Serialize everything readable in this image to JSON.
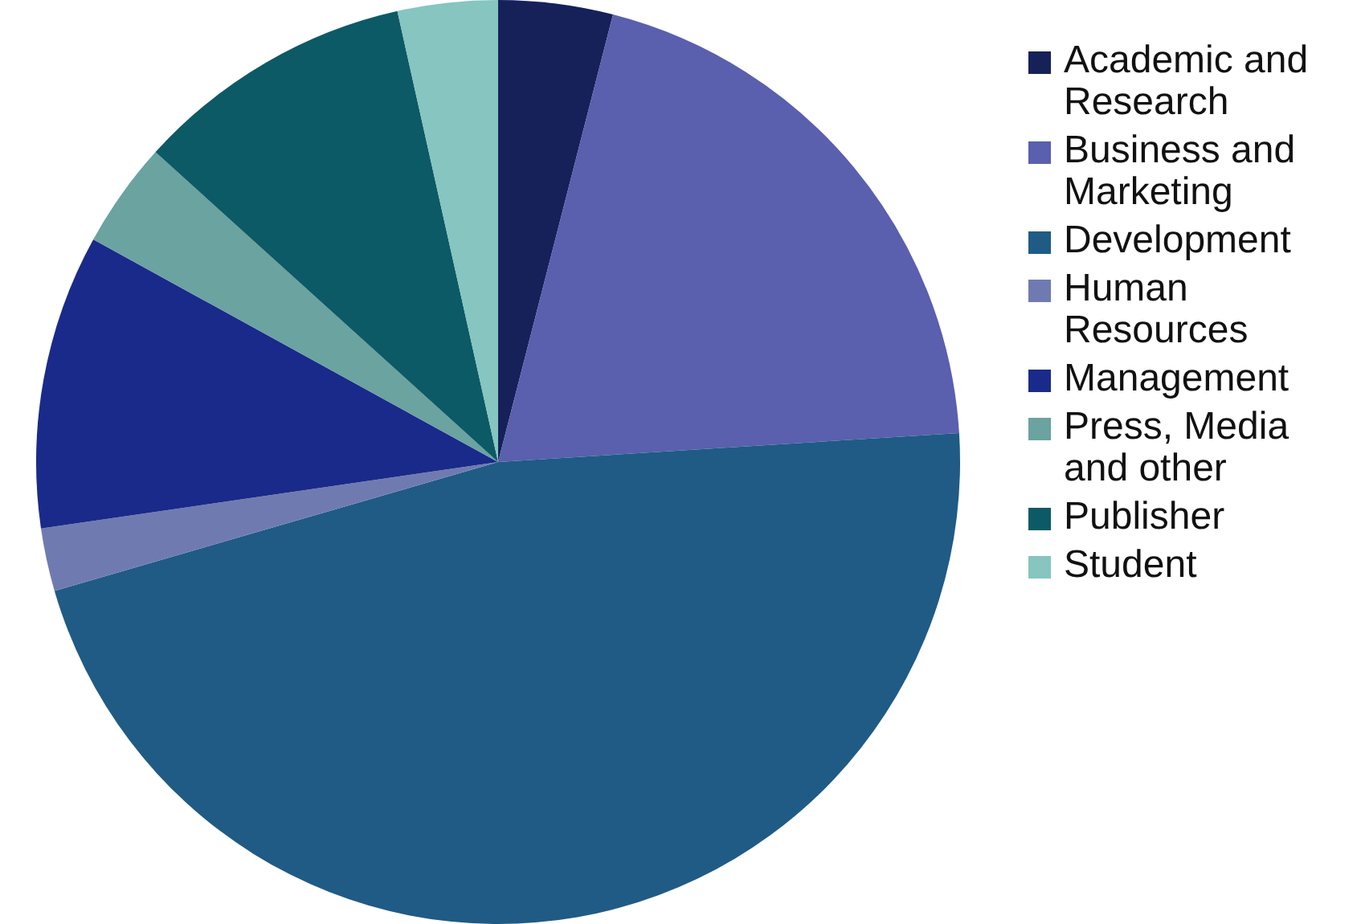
{
  "chart_data": {
    "type": "pie",
    "categories": [
      "Academic and Research",
      "Business and Marketing",
      "Development",
      "Human Resources",
      "Management",
      "Press, Media and other",
      "Publisher",
      "Student"
    ],
    "values": [
      4,
      20,
      46.5,
      2.2,
      10.3,
      3.7,
      9.8,
      3.5
    ],
    "colors": [
      "#16215a",
      "#5a5fae",
      "#1f5b85",
      "#6f7bb0",
      "#1a2a8a",
      "#6aa39f",
      "#0c5a66",
      "#86c5c0"
    ],
    "legend": "right"
  }
}
